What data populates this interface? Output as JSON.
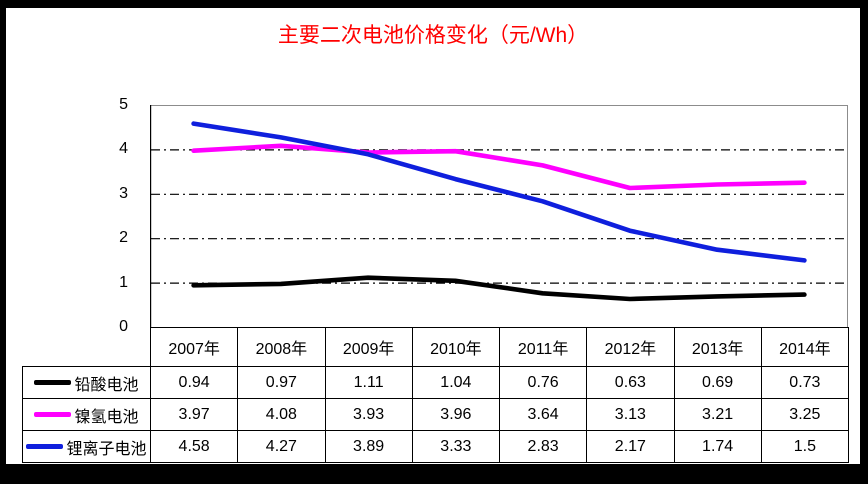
{
  "colors": {
    "title": "#ff0000",
    "frame": "#000000",
    "plot_border": "#8c8c8c",
    "axis": "#000000",
    "gridline": "#000000",
    "table_border": "#000000"
  },
  "chart_data": {
    "type": "line",
    "title": "主要二次电池价格变化（元/Wh）",
    "categories": [
      "2007年",
      "2008年",
      "2009年",
      "2010年",
      "2011年",
      "2012年",
      "2013年",
      "2014年"
    ],
    "series": [
      {
        "name": "铅酸电池",
        "color": "#000000",
        "values": [
          0.94,
          0.97,
          1.11,
          1.04,
          0.76,
          0.63,
          0.69,
          0.73
        ]
      },
      {
        "name": "镍氢电池",
        "color": "#ff00ff",
        "values": [
          3.97,
          4.08,
          3.93,
          3.96,
          3.64,
          3.13,
          3.21,
          3.25
        ]
      },
      {
        "name": "锂离子电池",
        "color": "#0f1fdd",
        "values": [
          4.58,
          4.27,
          3.89,
          3.33,
          2.83,
          2.17,
          1.74,
          1.5
        ]
      }
    ],
    "xlabel": "",
    "ylabel": "",
    "ylim": [
      0,
      5
    ],
    "yticks": [
      0,
      1,
      2,
      3,
      4,
      5
    ],
    "grid": "horizontal dash-dot",
    "legend_position": "table-left"
  }
}
